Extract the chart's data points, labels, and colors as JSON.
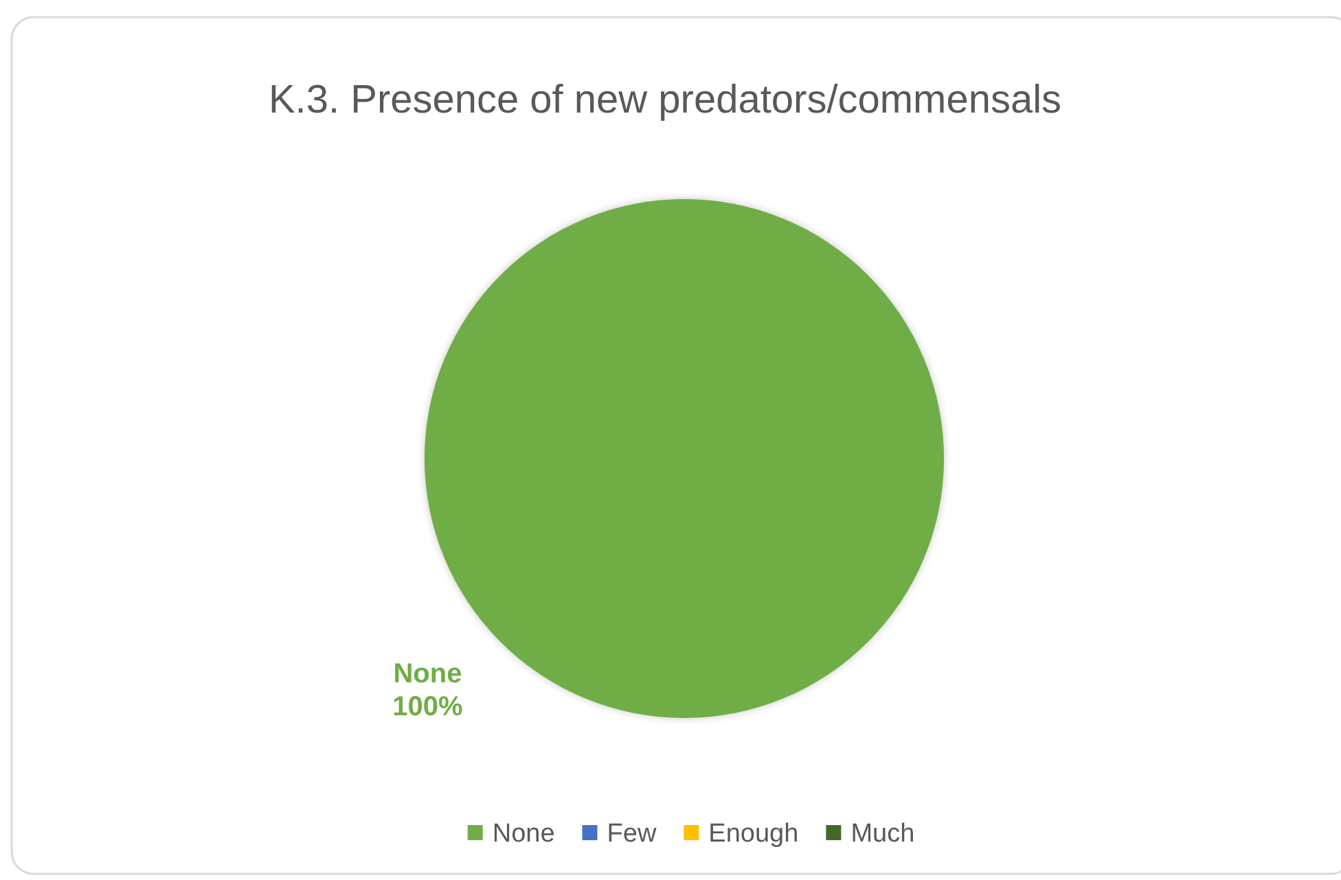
{
  "chart_data": {
    "type": "pie",
    "title": "K.3. Presence of new predators/commensals",
    "categories": [
      "None",
      "Few",
      "Enough",
      "Much"
    ],
    "values": [
      100,
      0,
      0,
      0
    ],
    "colors": [
      "#70ad47",
      "#4472c4",
      "#ffc000",
      "#43682b"
    ],
    "value_labels": [
      "100%",
      null,
      null,
      null
    ],
    "legend": "bottom"
  }
}
